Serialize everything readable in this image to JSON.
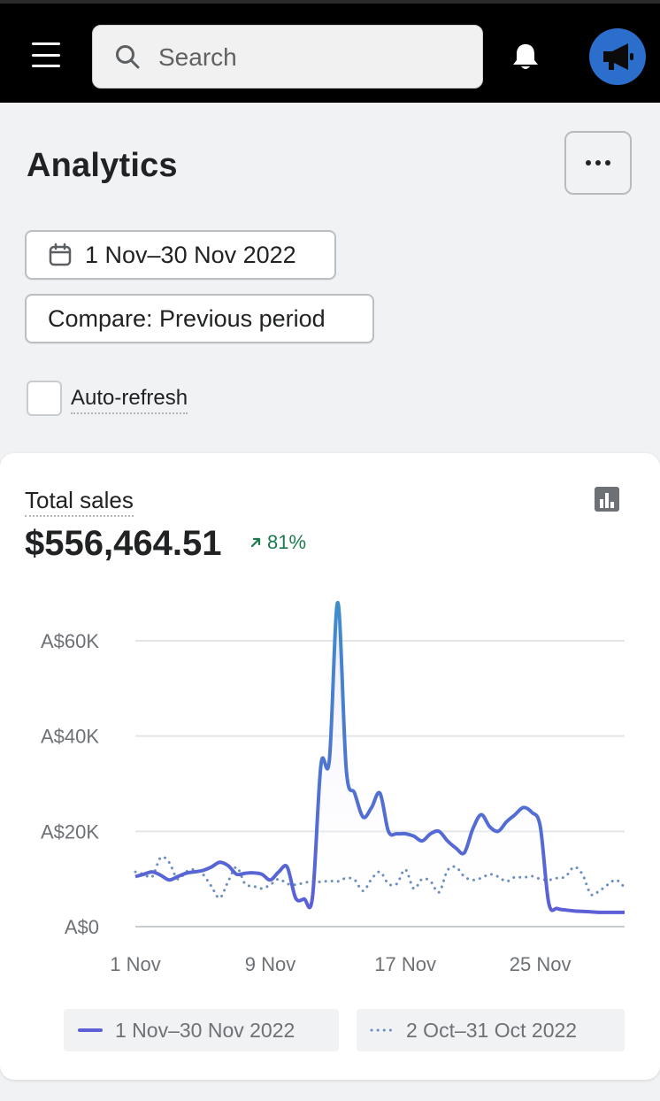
{
  "topbar": {
    "menu_icon": "hamburger-icon",
    "search_icon": "search-icon",
    "search_placeholder": "Search",
    "notifications_icon": "bell-icon",
    "announcements_icon": "megaphone-icon",
    "accent_color": "#2c6ecb"
  },
  "page": {
    "title": "Analytics",
    "more_icon": "more-horizontal-icon",
    "date_range_icon": "calendar-icon",
    "date_range_label": "1 Nov–30 Nov 2022",
    "compare_label": "Compare: Previous period",
    "auto_refresh_label": "Auto-refresh",
    "auto_refresh_checked": false
  },
  "card": {
    "title": "Total sales",
    "chart_icon": "bar-chart-icon",
    "value": "$556,464.51",
    "change_icon": "arrow-up-right-icon",
    "change": "81%",
    "change_color": "#1c7a4f"
  },
  "chart_data": {
    "type": "line",
    "ylim": [
      0,
      60000
    ],
    "y_ticks": [
      {
        "value": 0,
        "label": "A$0"
      },
      {
        "value": 20000,
        "label": "A$20K"
      },
      {
        "value": 40000,
        "label": "A$40K"
      },
      {
        "value": 60000,
        "label": "A$60K"
      }
    ],
    "x_ticks": [
      {
        "day": 1,
        "label": "1 Nov"
      },
      {
        "day": 9,
        "label": "9 Nov"
      },
      {
        "day": 17,
        "label": "17 Nov"
      },
      {
        "day": 25,
        "label": "25 Nov"
      }
    ],
    "grid": true,
    "legend_position": "bottom",
    "series": [
      {
        "name": "1 Nov–30 Nov 2022",
        "style": "solid",
        "color": "#5c5fd6",
        "x": [
          1,
          1.5,
          2,
          2.5,
          3,
          3.5,
          4,
          4.5,
          5,
          5.5,
          6,
          6.5,
          7,
          7.5,
          8,
          8.5,
          9,
          9.5,
          10,
          10.5,
          11,
          11.5,
          12,
          12.5,
          13,
          13.5,
          14,
          14.5,
          15,
          15.5,
          16,
          16.5,
          17,
          17.5,
          18,
          18.5,
          19,
          19.5,
          20,
          20.5,
          21,
          21.5,
          22,
          22.5,
          23,
          23.5,
          24,
          24.5,
          25,
          25.5,
          26,
          26.5,
          27,
          27.5,
          28,
          28.5,
          29,
          29.5,
          30
        ],
        "y": [
          10500,
          11000,
          11500,
          10800,
          9800,
          10500,
          11200,
          11500,
          11800,
          12500,
          13500,
          12800,
          11000,
          11200,
          11300,
          11000,
          9800,
          11500,
          12500,
          6000,
          5800,
          6200,
          34000,
          35000,
          68000,
          33000,
          28000,
          23000,
          25000,
          28000,
          20000,
          19500,
          19500,
          19000,
          18000,
          19500,
          20000,
          18000,
          16500,
          15500,
          20500,
          23500,
          21000,
          20000,
          22000,
          23500,
          25000,
          24000,
          21000,
          5000,
          3800,
          3500,
          3300,
          3200,
          3100,
          3000,
          3000,
          3000,
          3000
        ]
      },
      {
        "name": "2 Oct–31 Oct 2022",
        "style": "dotted",
        "color": "#6b8fbf",
        "x": [
          1,
          1.5,
          2,
          2.5,
          3,
          3.5,
          4,
          4.5,
          5,
          5.5,
          6,
          6.5,
          7,
          7.5,
          8,
          8.5,
          9,
          9.5,
          10,
          10.5,
          11,
          11.5,
          12,
          12.5,
          13,
          13.5,
          14,
          14.5,
          15,
          15.5,
          16,
          16.5,
          17,
          17.5,
          18,
          18.5,
          19,
          19.5,
          20,
          20.5,
          21,
          21.5,
          22,
          22.5,
          23,
          23.5,
          24,
          24.5,
          25,
          25.5,
          26,
          26.5,
          27,
          27.5,
          28,
          28.5,
          29,
          29.5,
          30
        ],
        "y": [
          11500,
          11000,
          10500,
          14500,
          13500,
          10000,
          11500,
          12000,
          11000,
          8500,
          6000,
          9500,
          12500,
          9000,
          8500,
          8000,
          8800,
          10000,
          9000,
          8800,
          9200,
          9500,
          9400,
          9600,
          9500,
          10200,
          9800,
          7500,
          10000,
          11500,
          9000,
          9000,
          12000,
          8000,
          10000,
          9500,
          7200,
          11800,
          12500,
          10500,
          9800,
          10200,
          11000,
          10500,
          9500,
          10400,
          10300,
          10600,
          10000,
          9800,
          10200,
          10500,
          12500,
          11000,
          6800,
          7500,
          8800,
          9800,
          8200
        ]
      }
    ]
  },
  "legend": {
    "current": "1 Nov–30 Nov 2022",
    "previous": "2 Oct–31 Oct 2022"
  }
}
